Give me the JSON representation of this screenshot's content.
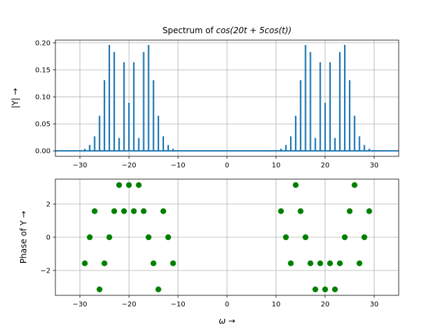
{
  "chart_data": [
    {
      "type": "stem",
      "title_prefix": "Spectrum of ",
      "title_math": "cos(20t + 5cos(t))",
      "xlabel": "",
      "ylabel": "|Y| →",
      "xlim": [
        -35,
        35
      ],
      "ylim": [
        -0.01,
        0.205
      ],
      "xticks": [
        -30,
        -20,
        -10,
        0,
        10,
        20,
        30
      ],
      "yticks": [
        0.0,
        0.05,
        0.1,
        0.15,
        0.2
      ],
      "ytick_labels": [
        "0.00",
        "0.05",
        "0.10",
        "0.15",
        "0.20"
      ],
      "grid": true,
      "color": "#1f77b4",
      "series": [
        {
          "x": [
            -31,
            -30,
            -29,
            -28,
            -27,
            -26,
            -25,
            -24,
            -23,
            -22,
            -21,
            -20,
            -19,
            -18,
            -17,
            -16,
            -15,
            -14,
            -13,
            -12,
            -11,
            -10,
            -9,
            9,
            10,
            11,
            12,
            13,
            14,
            15,
            16,
            17,
            18,
            19,
            20,
            21,
            22,
            23,
            24,
            25,
            26,
            27,
            28,
            29,
            30,
            31
          ],
          "values": [
            0.0005,
            0.0015,
            0.004,
            0.011,
            0.027,
            0.065,
            0.131,
            0.196,
            0.183,
            0.024,
            0.164,
            0.089,
            0.164,
            0.024,
            0.183,
            0.196,
            0.131,
            0.065,
            0.027,
            0.011,
            0.004,
            0.0015,
            0.0005,
            0.0005,
            0.0015,
            0.004,
            0.011,
            0.027,
            0.065,
            0.131,
            0.196,
            0.183,
            0.024,
            0.164,
            0.089,
            0.164,
            0.024,
            0.183,
            0.196,
            0.131,
            0.065,
            0.027,
            0.011,
            0.004,
            0.0015,
            0.0005
          ]
        }
      ]
    },
    {
      "type": "scatter",
      "xlabel": "ω →",
      "ylabel": "Phase of Y →",
      "xlim": [
        -35,
        35
      ],
      "ylim": [
        -3.5,
        3.5
      ],
      "xticks": [
        -30,
        -20,
        -10,
        0,
        10,
        20,
        30
      ],
      "yticks": [
        -2,
        0,
        2
      ],
      "ytick_labels": [
        "−2",
        "0",
        "2"
      ],
      "grid": true,
      "color": "#008000",
      "series": [
        {
          "x": [
            -29,
            -28,
            -27,
            -26,
            -25,
            -24,
            -23,
            -22,
            -21,
            -20,
            -19,
            -18,
            -17,
            -16,
            -15,
            -14,
            -13,
            -12,
            -11,
            11,
            12,
            13,
            14,
            15,
            16,
            17,
            18,
            19,
            20,
            21,
            22,
            23,
            24,
            25,
            26,
            27,
            28,
            29
          ],
          "y": [
            -1.571,
            0,
            1.571,
            -3.142,
            -1.571,
            0,
            1.571,
            3.142,
            1.571,
            3.142,
            1.571,
            3.142,
            1.571,
            0,
            -1.571,
            -3.142,
            1.571,
            0,
            -1.571,
            1.571,
            0,
            -1.571,
            3.142,
            1.571,
            0,
            -1.571,
            -3.142,
            -1.571,
            -3.142,
            -1.571,
            -3.142,
            -1.571,
            0,
            1.571,
            3.142,
            -1.571,
            0,
            1.571
          ]
        }
      ]
    }
  ]
}
